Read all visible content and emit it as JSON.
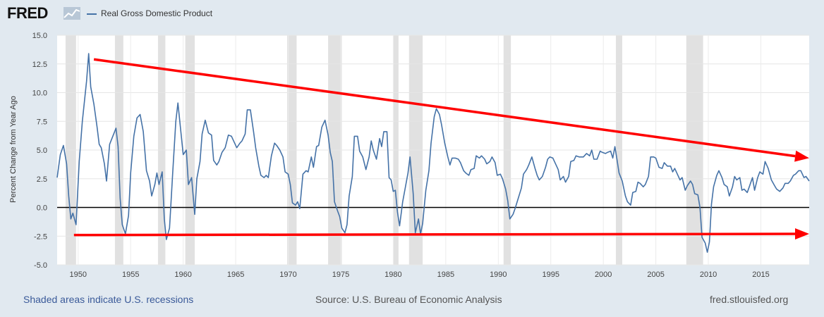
{
  "header": {
    "logo_text": "FRED",
    "series_title": "Real Gross Domestic Product",
    "series_color": "#4572a7"
  },
  "footer": {
    "recession_note": "Shaded areas indicate U.S. recessions",
    "source": "Source: U.S. Bureau of Economic Analysis",
    "site": "fred.stlouisfed.org"
  },
  "chart_data": {
    "type": "line",
    "title": "Real Gross Domestic Product",
    "ylabel": "Percent Change from Year Ago",
    "xlabel": "",
    "xlim": [
      1948,
      2019.6
    ],
    "ylim": [
      -5,
      15
    ],
    "x_ticks": [
      1950,
      1955,
      1960,
      1965,
      1970,
      1975,
      1980,
      1985,
      1990,
      1995,
      2000,
      2005,
      2010,
      2015
    ],
    "y_ticks": [
      -5.0,
      -2.5,
      0.0,
      2.5,
      5.0,
      7.5,
      10.0,
      12.5,
      15.0
    ],
    "y_tick_labels": [
      "-5.0",
      "-2.5",
      "0.0",
      "2.5",
      "5.0",
      "7.5",
      "10.0",
      "12.5",
      "15.0"
    ],
    "grid": true,
    "recessions": [
      [
        1948.8,
        1949.8
      ],
      [
        1953.5,
        1954.3
      ],
      [
        1957.6,
        1958.3
      ],
      [
        1960.2,
        1961.1
      ],
      [
        1969.9,
        1970.8
      ],
      [
        1973.8,
        1975.1
      ],
      [
        1980.0,
        1980.5
      ],
      [
        1981.5,
        1982.8
      ],
      [
        1990.5,
        1991.2
      ],
      [
        2001.2,
        2001.8
      ],
      [
        2007.9,
        2009.5
      ]
    ],
    "series": [
      {
        "name": "Real Gross Domestic Product",
        "color": "#4572a7",
        "points": [
          [
            1948.0,
            2.6
          ],
          [
            1948.3,
            4.6
          ],
          [
            1948.6,
            5.4
          ],
          [
            1948.9,
            3.8
          ],
          [
            1949.1,
            1.0
          ],
          [
            1949.3,
            -1.0
          ],
          [
            1949.5,
            -0.5
          ],
          [
            1949.8,
            -1.5
          ],
          [
            1950.1,
            4.0
          ],
          [
            1950.4,
            7.5
          ],
          [
            1950.8,
            11.0
          ],
          [
            1951.0,
            13.4
          ],
          [
            1951.2,
            10.5
          ],
          [
            1951.5,
            9.0
          ],
          [
            1951.8,
            7.0
          ],
          [
            1952.0,
            5.5
          ],
          [
            1952.2,
            5.2
          ],
          [
            1952.5,
            3.8
          ],
          [
            1952.7,
            2.3
          ],
          [
            1953.0,
            5.5
          ],
          [
            1953.3,
            6.2
          ],
          [
            1953.6,
            6.9
          ],
          [
            1953.8,
            5.3
          ],
          [
            1954.0,
            0.8
          ],
          [
            1954.2,
            -1.5
          ],
          [
            1954.5,
            -2.3
          ],
          [
            1954.8,
            -0.7
          ],
          [
            1955.0,
            3.0
          ],
          [
            1955.3,
            6.2
          ],
          [
            1955.6,
            7.8
          ],
          [
            1955.9,
            8.1
          ],
          [
            1956.2,
            6.6
          ],
          [
            1956.5,
            3.2
          ],
          [
            1956.8,
            2.3
          ],
          [
            1957.0,
            1.0
          ],
          [
            1957.3,
            2.0
          ],
          [
            1957.5,
            3.0
          ],
          [
            1957.7,
            2.0
          ],
          [
            1958.0,
            3.1
          ],
          [
            1958.2,
            -1.0
          ],
          [
            1958.4,
            -2.8
          ],
          [
            1958.7,
            -1.8
          ],
          [
            1959.0,
            3.0
          ],
          [
            1959.3,
            7.5
          ],
          [
            1959.5,
            9.1
          ],
          [
            1959.8,
            6.4
          ],
          [
            1960.0,
            4.6
          ],
          [
            1960.3,
            5.0
          ],
          [
            1960.5,
            2.0
          ],
          [
            1960.8,
            2.6
          ],
          [
            1961.1,
            -0.6
          ],
          [
            1961.3,
            2.5
          ],
          [
            1961.6,
            4.0
          ],
          [
            1961.8,
            6.4
          ],
          [
            1962.1,
            7.6
          ],
          [
            1962.4,
            6.5
          ],
          [
            1962.7,
            6.3
          ],
          [
            1962.9,
            4.1
          ],
          [
            1963.2,
            3.7
          ],
          [
            1963.4,
            4.0
          ],
          [
            1963.7,
            4.8
          ],
          [
            1964.0,
            5.2
          ],
          [
            1964.3,
            6.3
          ],
          [
            1964.6,
            6.2
          ],
          [
            1964.9,
            5.6
          ],
          [
            1965.1,
            5.2
          ],
          [
            1965.4,
            5.6
          ],
          [
            1965.6,
            5.8
          ],
          [
            1965.9,
            6.4
          ],
          [
            1966.1,
            8.5
          ],
          [
            1966.4,
            8.5
          ],
          [
            1966.7,
            6.6
          ],
          [
            1966.9,
            5.2
          ],
          [
            1967.2,
            3.6
          ],
          [
            1967.4,
            2.8
          ],
          [
            1967.7,
            2.6
          ],
          [
            1967.9,
            2.8
          ],
          [
            1968.1,
            2.6
          ],
          [
            1968.4,
            4.5
          ],
          [
            1968.7,
            5.6
          ],
          [
            1968.9,
            5.4
          ],
          [
            1969.2,
            5.0
          ],
          [
            1969.5,
            4.4
          ],
          [
            1969.7,
            3.1
          ],
          [
            1970.0,
            2.9
          ],
          [
            1970.2,
            2.0
          ],
          [
            1970.4,
            0.4
          ],
          [
            1970.7,
            0.2
          ],
          [
            1970.9,
            0.5
          ],
          [
            1971.1,
            -0.1
          ],
          [
            1971.4,
            2.9
          ],
          [
            1971.7,
            3.2
          ],
          [
            1971.9,
            3.1
          ],
          [
            1972.2,
            4.4
          ],
          [
            1972.4,
            3.5
          ],
          [
            1972.7,
            5.3
          ],
          [
            1972.9,
            5.4
          ],
          [
            1973.2,
            7.0
          ],
          [
            1973.5,
            7.6
          ],
          [
            1973.8,
            6.3
          ],
          [
            1974.0,
            4.8
          ],
          [
            1974.2,
            4.0
          ],
          [
            1974.4,
            0.5
          ],
          [
            1974.7,
            -0.3
          ],
          [
            1974.9,
            -0.8
          ],
          [
            1975.1,
            -1.8
          ],
          [
            1975.4,
            -2.2
          ],
          [
            1975.6,
            -1.5
          ],
          [
            1975.8,
            1.0
          ],
          [
            1976.1,
            2.7
          ],
          [
            1976.3,
            6.2
          ],
          [
            1976.6,
            6.2
          ],
          [
            1976.8,
            4.9
          ],
          [
            1977.1,
            4.4
          ],
          [
            1977.4,
            3.3
          ],
          [
            1977.7,
            4.4
          ],
          [
            1977.9,
            5.8
          ],
          [
            1978.1,
            5.0
          ],
          [
            1978.4,
            4.2
          ],
          [
            1978.7,
            6.0
          ],
          [
            1978.9,
            5.3
          ],
          [
            1979.1,
            6.6
          ],
          [
            1979.4,
            6.6
          ],
          [
            1979.6,
            2.6
          ],
          [
            1979.8,
            2.4
          ],
          [
            1980.0,
            1.4
          ],
          [
            1980.2,
            1.5
          ],
          [
            1980.4,
            -0.4
          ],
          [
            1980.6,
            -1.6
          ],
          [
            1980.9,
            0.5
          ],
          [
            1981.1,
            1.5
          ],
          [
            1981.4,
            3.0
          ],
          [
            1981.6,
            4.4
          ],
          [
            1981.9,
            1.2
          ],
          [
            1982.1,
            -2.2
          ],
          [
            1982.4,
            -1.0
          ],
          [
            1982.6,
            -2.3
          ],
          [
            1982.8,
            -1.4
          ],
          [
            1983.1,
            1.5
          ],
          [
            1983.4,
            3.2
          ],
          [
            1983.6,
            5.6
          ],
          [
            1983.9,
            7.9
          ],
          [
            1984.1,
            8.6
          ],
          [
            1984.4,
            8.1
          ],
          [
            1984.6,
            7.2
          ],
          [
            1984.9,
            5.6
          ],
          [
            1985.2,
            4.4
          ],
          [
            1985.4,
            3.7
          ],
          [
            1985.6,
            4.3
          ],
          [
            1985.9,
            4.3
          ],
          [
            1986.2,
            4.2
          ],
          [
            1986.4,
            3.9
          ],
          [
            1986.7,
            3.2
          ],
          [
            1986.9,
            3.0
          ],
          [
            1987.2,
            2.8
          ],
          [
            1987.4,
            3.3
          ],
          [
            1987.7,
            3.4
          ],
          [
            1987.9,
            4.5
          ],
          [
            1988.2,
            4.3
          ],
          [
            1988.4,
            4.5
          ],
          [
            1988.7,
            4.2
          ],
          [
            1988.9,
            3.8
          ],
          [
            1989.2,
            4.0
          ],
          [
            1989.4,
            4.4
          ],
          [
            1989.7,
            3.9
          ],
          [
            1989.9,
            2.8
          ],
          [
            1990.2,
            2.9
          ],
          [
            1990.4,
            2.5
          ],
          [
            1990.7,
            1.6
          ],
          [
            1990.9,
            0.6
          ],
          [
            1991.1,
            -1.0
          ],
          [
            1991.4,
            -0.6
          ],
          [
            1991.6,
            -0.1
          ],
          [
            1991.9,
            0.8
          ],
          [
            1992.2,
            1.7
          ],
          [
            1992.4,
            2.9
          ],
          [
            1992.7,
            3.3
          ],
          [
            1992.9,
            3.7
          ],
          [
            1993.2,
            4.4
          ],
          [
            1993.5,
            3.4
          ],
          [
            1993.7,
            2.8
          ],
          [
            1993.9,
            2.4
          ],
          [
            1994.2,
            2.7
          ],
          [
            1994.5,
            3.5
          ],
          [
            1994.7,
            4.2
          ],
          [
            1994.9,
            4.4
          ],
          [
            1995.2,
            4.3
          ],
          [
            1995.4,
            3.9
          ],
          [
            1995.7,
            3.3
          ],
          [
            1995.9,
            2.4
          ],
          [
            1996.2,
            2.7
          ],
          [
            1996.4,
            2.2
          ],
          [
            1996.7,
            2.7
          ],
          [
            1996.9,
            4.0
          ],
          [
            1997.2,
            4.1
          ],
          [
            1997.4,
            4.5
          ],
          [
            1997.7,
            4.4
          ],
          [
            1997.9,
            4.4
          ],
          [
            1998.1,
            4.4
          ],
          [
            1998.4,
            4.7
          ],
          [
            1998.7,
            4.5
          ],
          [
            1998.9,
            5.0
          ],
          [
            1999.1,
            4.2
          ],
          [
            1999.4,
            4.2
          ],
          [
            1999.7,
            4.9
          ],
          [
            1999.9,
            4.8
          ],
          [
            2000.2,
            4.7
          ],
          [
            2000.4,
            4.8
          ],
          [
            2000.7,
            4.9
          ],
          [
            2000.9,
            4.3
          ],
          [
            2001.1,
            5.3
          ],
          [
            2001.3,
            4.2
          ],
          [
            2001.5,
            3.0
          ],
          [
            2001.8,
            2.3
          ],
          [
            2002.1,
            1.0
          ],
          [
            2002.3,
            0.5
          ],
          [
            2002.6,
            0.2
          ],
          [
            2002.8,
            1.3
          ],
          [
            2003.1,
            1.4
          ],
          [
            2003.3,
            2.2
          ],
          [
            2003.5,
            2.1
          ],
          [
            2003.8,
            1.8
          ],
          [
            2004.0,
            2.0
          ],
          [
            2004.3,
            2.7
          ],
          [
            2004.5,
            4.4
          ],
          [
            2004.8,
            4.4
          ],
          [
            2005.0,
            4.3
          ],
          [
            2005.3,
            3.5
          ],
          [
            2005.6,
            3.4
          ],
          [
            2005.8,
            3.9
          ],
          [
            2006.1,
            3.6
          ],
          [
            2006.4,
            3.6
          ],
          [
            2006.6,
            3.1
          ],
          [
            2006.8,
            3.4
          ],
          [
            2007.0,
            3.0
          ],
          [
            2007.3,
            2.4
          ],
          [
            2007.5,
            2.6
          ],
          [
            2007.8,
            1.5
          ],
          [
            2008.0,
            1.9
          ],
          [
            2008.3,
            2.3
          ],
          [
            2008.5,
            2.0
          ],
          [
            2008.7,
            1.2
          ],
          [
            2009.0,
            1.1
          ],
          [
            2009.2,
            0.0
          ],
          [
            2009.4,
            -2.6
          ],
          [
            2009.7,
            -3.1
          ],
          [
            2009.9,
            -3.9
          ],
          [
            2010.1,
            -3.0
          ],
          [
            2010.3,
            0.3
          ],
          [
            2010.5,
            1.8
          ],
          [
            2010.8,
            2.8
          ],
          [
            2011.0,
            3.2
          ],
          [
            2011.3,
            2.6
          ],
          [
            2011.5,
            2.0
          ],
          [
            2011.8,
            1.8
          ],
          [
            2012.0,
            1.0
          ],
          [
            2012.3,
            1.8
          ],
          [
            2012.5,
            2.7
          ],
          [
            2012.7,
            2.4
          ],
          [
            2013.0,
            2.6
          ],
          [
            2013.2,
            1.5
          ],
          [
            2013.4,
            1.6
          ],
          [
            2013.7,
            1.3
          ],
          [
            2013.9,
            1.8
          ],
          [
            2014.2,
            2.6
          ],
          [
            2014.4,
            1.5
          ],
          [
            2014.7,
            2.6
          ],
          [
            2014.9,
            3.1
          ],
          [
            2015.2,
            2.9
          ],
          [
            2015.4,
            4.0
          ],
          [
            2015.7,
            3.4
          ],
          [
            2016.0,
            2.4
          ],
          [
            2016.3,
            1.9
          ],
          [
            2016.5,
            1.6
          ],
          [
            2016.8,
            1.4
          ],
          [
            2017.1,
            1.7
          ],
          [
            2017.3,
            2.1
          ],
          [
            2017.6,
            2.1
          ],
          [
            2017.8,
            2.3
          ],
          [
            2018.1,
            2.8
          ],
          [
            2018.3,
            2.9
          ],
          [
            2018.6,
            3.2
          ],
          [
            2018.8,
            3.2
          ],
          [
            2019.1,
            2.6
          ],
          [
            2019.3,
            2.7
          ],
          [
            2019.6,
            2.3
          ]
        ]
      }
    ],
    "annotations": [
      {
        "type": "arrow",
        "color": "#ff0000",
        "from": [
          1951.5,
          12.9
        ],
        "to": [
          2019.6,
          4.3
        ]
      },
      {
        "type": "arrow",
        "color": "#ff0000",
        "from": [
          1949.6,
          -2.4
        ],
        "to": [
          2019.6,
          -2.3
        ]
      }
    ]
  }
}
